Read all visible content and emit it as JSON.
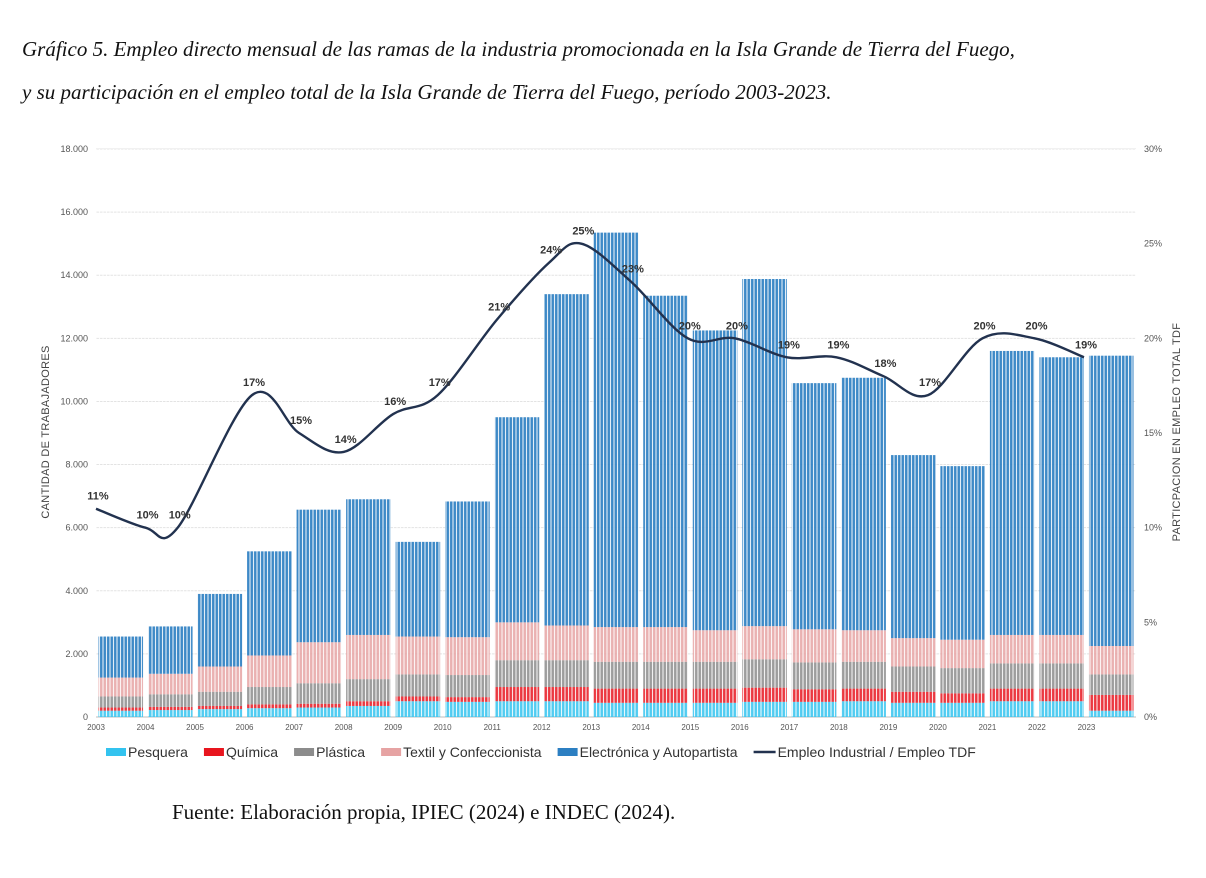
{
  "caption": {
    "line1": "Gráfico 5. Empleo directo mensual de las ramas de la industria promocionada en la Isla Grande de Tierra del Fuego,",
    "line2": "y su participación en el empleo total de la Isla Grande de Tierra del Fuego, período 2003-2023."
  },
  "source": "Fuente: Elaboración propia, IPIEC (2024) e INDEC (2024).",
  "chart_data": {
    "type": "bar",
    "stacked": true,
    "ylabel": "CANTIDAD DE TRABAJADORES",
    "y2label": "PARTICPACION EN EMPLEO TOTAL TDF",
    "ylim": [
      0,
      18000
    ],
    "y2lim": [
      0,
      30
    ],
    "yticks": [
      "0",
      "2.000",
      "4.000",
      "6.000",
      "8.000",
      "10.000",
      "12.000",
      "14.000",
      "16.000",
      "18.000"
    ],
    "y2ticks": [
      "0%",
      "5%",
      "10%",
      "15%",
      "20%",
      "25%",
      "30%"
    ],
    "x": [
      "2003",
      "2004",
      "2005",
      "2006",
      "2007",
      "2008",
      "2009",
      "2010",
      "2011",
      "2012",
      "2013",
      "2014",
      "2015",
      "2016",
      "2017",
      "2018",
      "2019",
      "2020",
      "2021",
      "2022",
      "2023"
    ],
    "grid": true,
    "legend_position": "bottom",
    "colors": {
      "Pesquera": "#33c3ef",
      "Química": "#e8151e",
      "Plástica": "#8c8c8c",
      "Textil y Confeccionista": "#e6a3a3",
      "Electrónica y Autopartista": "#2c7fc2",
      "line": "#22324f"
    },
    "series": [
      {
        "name": "Pesquera",
        "values": [
          200,
          220,
          250,
          280,
          300,
          350,
          500,
          480,
          500,
          500,
          450,
          450,
          450,
          480,
          480,
          500,
          450,
          450,
          500,
          500,
          200
        ]
      },
      {
        "name": "Química",
        "values": [
          100,
          100,
          100,
          120,
          120,
          150,
          150,
          150,
          450,
          450,
          450,
          450,
          450,
          450,
          400,
          400,
          350,
          300,
          400,
          400,
          500
        ]
      },
      {
        "name": "Plástica",
        "values": [
          350,
          400,
          450,
          550,
          650,
          700,
          700,
          700,
          850,
          850,
          850,
          850,
          850,
          900,
          850,
          850,
          800,
          800,
          800,
          800,
          650
        ]
      },
      {
        "name": "Textil y Confeccionista",
        "values": [
          600,
          650,
          800,
          1000,
          1300,
          1400,
          1200,
          1200,
          1200,
          1100,
          1100,
          1100,
          1000,
          1050,
          1050,
          1000,
          900,
          900,
          900,
          900,
          900
        ]
      },
      {
        "name": "Electrónica y Autopartista",
        "values": [
          1300,
          1500,
          2300,
          3300,
          4200,
          4300,
          3000,
          4300,
          6500,
          10500,
          12500,
          10500,
          9500,
          11000,
          7800,
          8000,
          5800,
          5500,
          9000,
          8800,
          9200
        ]
      }
    ],
    "line_series": {
      "name": "Empleo Industrial / Empleo TDF",
      "unit": "%",
      "x": [
        2003.0,
        2004.0,
        2004.65,
        2006.15,
        2007.1,
        2008.0,
        2009.0,
        2009.9,
        2011.1,
        2012.15,
        2012.8,
        2013.8,
        2014.95,
        2015.9,
        2016.95,
        2017.95,
        2018.9,
        2019.8,
        2020.9,
        2021.95,
        2022.95
      ],
      "values": [
        11,
        10,
        10,
        17,
        15,
        14,
        16,
        17,
        21,
        24,
        25,
        23,
        20,
        20,
        19,
        19,
        18,
        17,
        20,
        20,
        19
      ],
      "labels": [
        "11%",
        "10%",
        "10%",
        "17%",
        "15%",
        "14%",
        "16%",
        "17%",
        "21%",
        "24%",
        "25%",
        "23%",
        "20%",
        "20%",
        "19%",
        "19%",
        "18%",
        "17%",
        "20%",
        "20%",
        "19%"
      ]
    }
  }
}
